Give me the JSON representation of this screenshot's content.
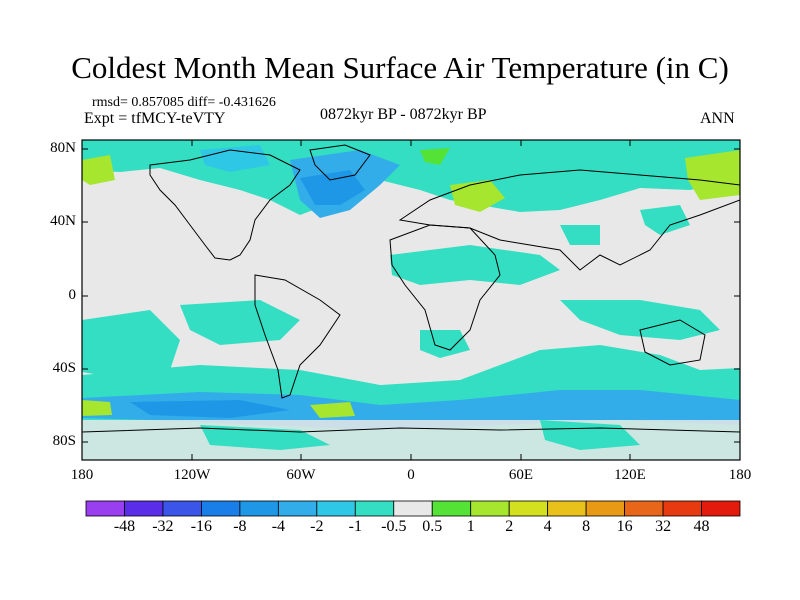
{
  "title": "Coldest Month Mean Surface Air Temperature (in C)",
  "stats": "rmsd= 0.857085 diff= -0.431626",
  "experiment": "Expt = tfMCY-teVTY",
  "period": "0872kyr BP - 0872kyr BP",
  "season": "ANN",
  "map": {
    "lat_ticks": [
      "80N",
      "40N",
      "0",
      "40S",
      "80S"
    ],
    "lon_ticks": [
      "180",
      "120W",
      "60W",
      "0",
      "60E",
      "120E",
      "180"
    ]
  },
  "colorbar": {
    "labels": [
      "-48",
      "-32",
      "-16",
      "-8",
      "-4",
      "-2",
      "-1",
      "-0.5",
      "0.5",
      "1",
      "2",
      "4",
      "8",
      "16",
      "32",
      "48"
    ],
    "colors": [
      "#9a3ff0",
      "#5a2ee8",
      "#3b55e8",
      "#1a7ee8",
      "#1e97e6",
      "#33acea",
      "#2fc7e6",
      "#33dec2",
      "#e8e8e8",
      "#55e236",
      "#a6e62e",
      "#d2e020",
      "#e8c21a",
      "#e89a14",
      "#e8661a",
      "#e83a10",
      "#e21b0c"
    ]
  }
}
